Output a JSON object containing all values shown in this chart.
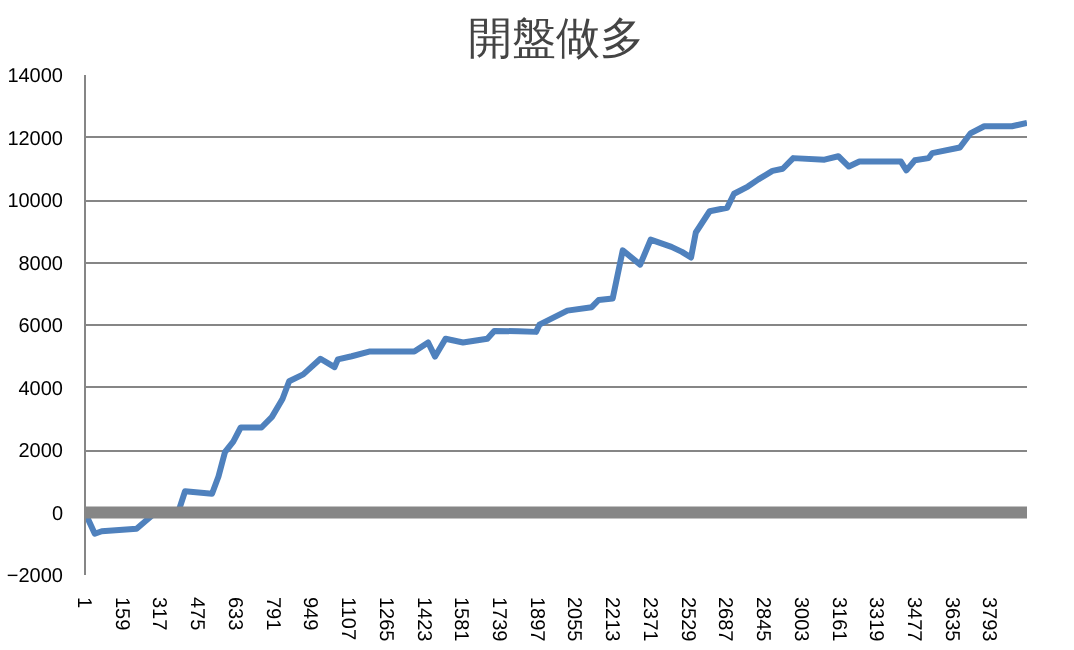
{
  "chart_data": {
    "type": "line",
    "title": "開盤做多",
    "x": [
      1,
      42,
      71,
      217,
      289,
      391,
      420,
      533,
      560,
      587,
      622,
      653,
      740,
      784,
      828,
      856,
      915,
      987,
      1046,
      1060,
      1118,
      1191,
      1380,
      1438,
      1467,
      1511,
      1584,
      1686,
      1715,
      1817,
      1890,
      1904,
      2021,
      2123,
      2152,
      2211,
      2253,
      2326,
      2370,
      2457,
      2501,
      2539,
      2559,
      2617,
      2690,
      2719,
      2777,
      2821,
      2880,
      2923,
      2967,
      3098,
      3156,
      3200,
      3244,
      3418,
      3441,
      3476,
      3534,
      3549,
      3665,
      3709,
      3767,
      3883,
      3946
    ],
    "series": [
      {
        "color": "#4f81bd",
        "values": [
          0,
          -680,
          -600,
          -520,
          -50,
          0,
          680,
          600,
          1150,
          1930,
          2270,
          2720,
          2720,
          3060,
          3630,
          4200,
          4420,
          4920,
          4650,
          4900,
          5000,
          5150,
          5150,
          5440,
          4990,
          5560,
          5440,
          5560,
          5810,
          5800,
          5780,
          6010,
          6460,
          6570,
          6800,
          6850,
          8390,
          7930,
          8730,
          8500,
          8340,
          8160,
          8960,
          9640,
          9750,
          10200,
          10430,
          10660,
          10930,
          11000,
          11340,
          11290,
          11400,
          11070,
          11230,
          11230,
          10950,
          11270,
          11340,
          11500,
          11680,
          12130,
          12360,
          12360,
          12470
        ]
      }
    ],
    "xlim": [
      1,
      3946
    ],
    "xticks": [
      1,
      159,
      317,
      475,
      633,
      791,
      949,
      1107,
      1265,
      1423,
      1581,
      1739,
      1897,
      2055,
      2213,
      2371,
      2529,
      2687,
      2845,
      3003,
      3161,
      3319,
      3477,
      3635,
      3793
    ],
    "ylim": [
      -2000,
      14000
    ],
    "yticks": [
      -2000,
      0,
      2000,
      4000,
      6000,
      8000,
      10000,
      12000,
      14000
    ],
    "grid": "y"
  }
}
